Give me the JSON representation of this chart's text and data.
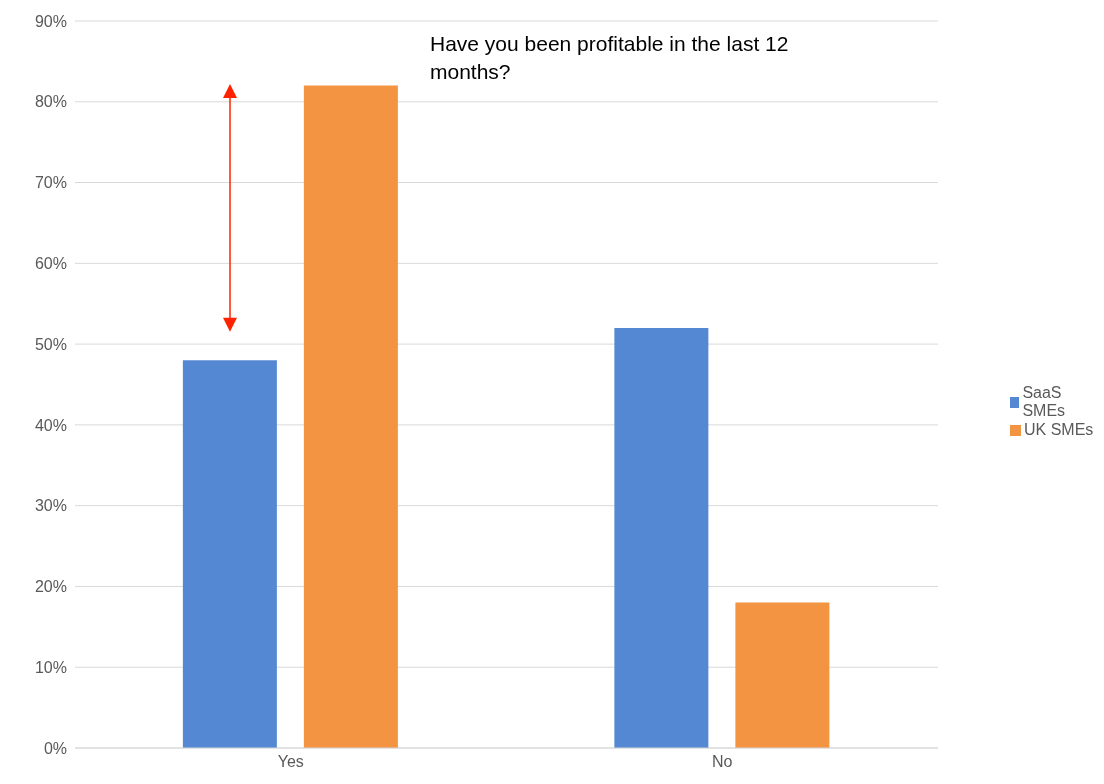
{
  "chart_data": {
    "type": "bar",
    "title": "Have you been profitable in the last 12 months?",
    "categories": [
      "Yes",
      "No"
    ],
    "series": [
      {
        "name": "SaaS SMEs",
        "color": "#5588d2",
        "values": [
          48,
          52
        ]
      },
      {
        "name": "UK SMEs",
        "color": "#f29441",
        "values": [
          82,
          18
        ]
      }
    ],
    "ylim": [
      0,
      90
    ],
    "yticks": [
      {
        "value": 0,
        "label": "0%"
      },
      {
        "value": 10,
        "label": "10%"
      },
      {
        "value": 20,
        "label": "20%"
      },
      {
        "value": 30,
        "label": "30%"
      },
      {
        "value": 40,
        "label": "40%"
      },
      {
        "value": 50,
        "label": "50%"
      },
      {
        "value": 60,
        "label": "60%"
      },
      {
        "value": 70,
        "label": "70%"
      },
      {
        "value": 80,
        "label": "80%"
      },
      {
        "value": 90,
        "label": "90%"
      }
    ],
    "grid": "y",
    "legend": "right"
  }
}
